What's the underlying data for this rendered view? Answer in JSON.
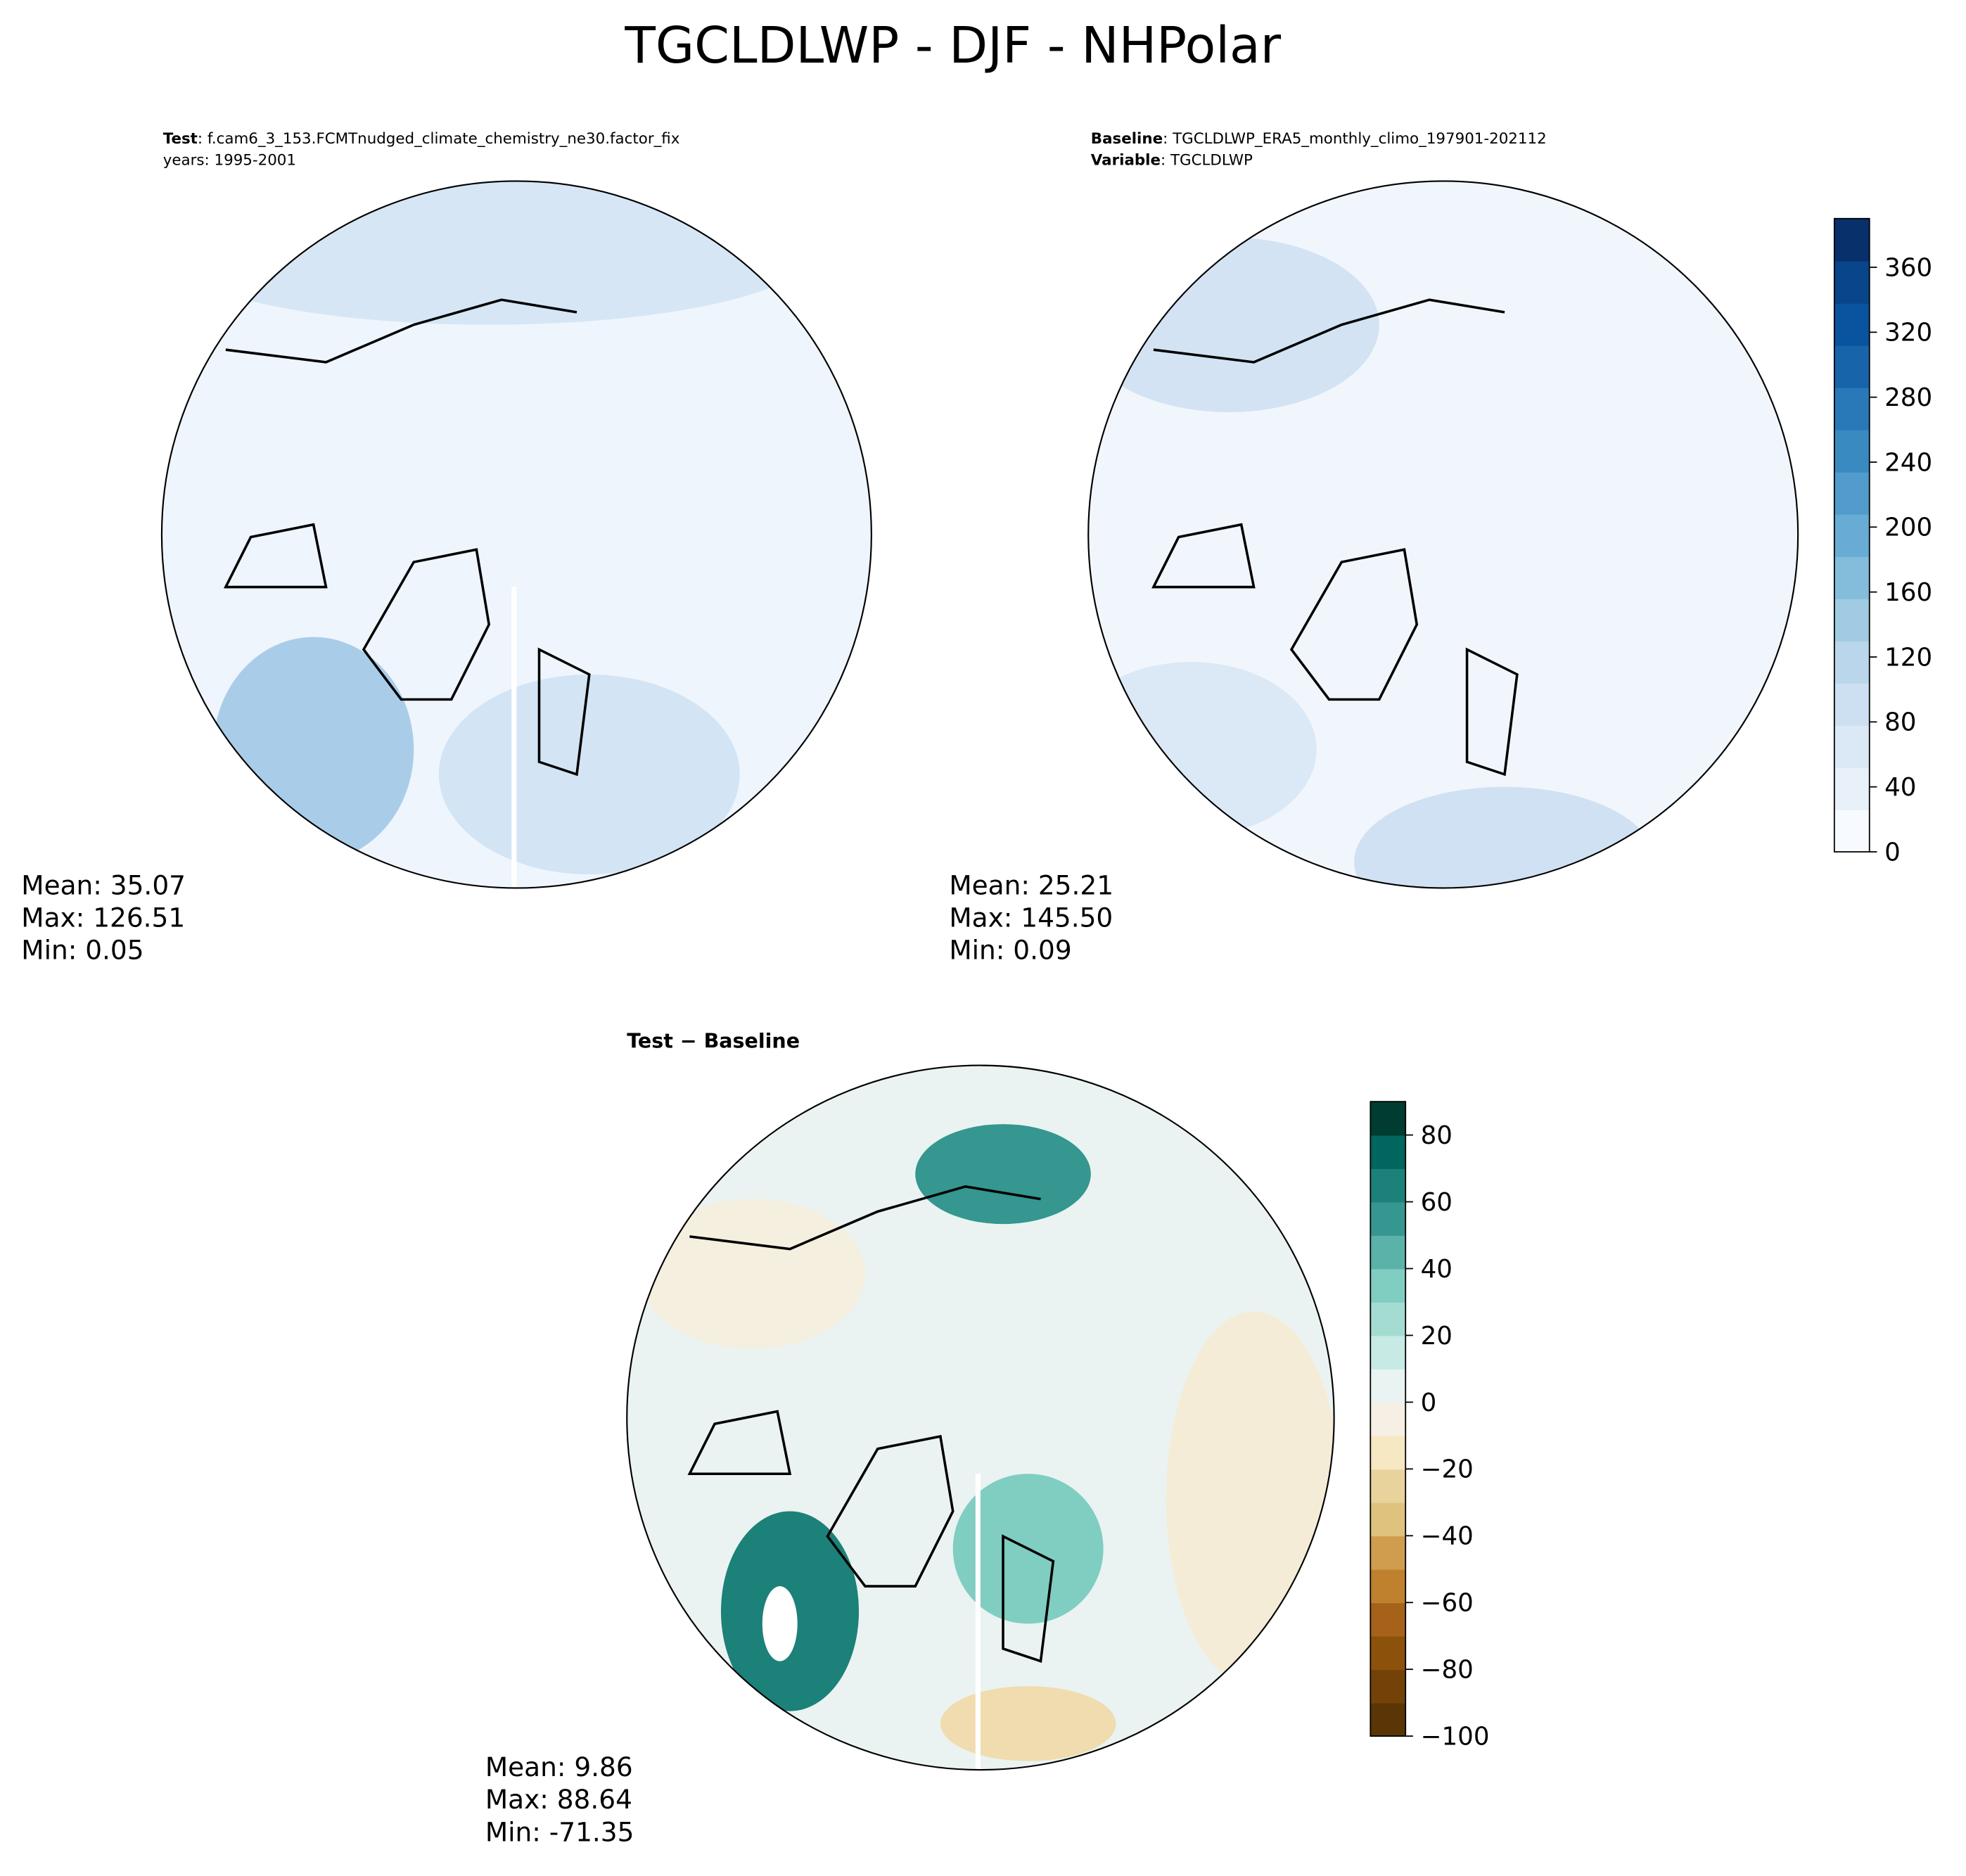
{
  "title": "TGCLDLWP - DJF - NHPolar",
  "panels": [
    {
      "header": [
        {
          "label": "Test",
          "text": ": f.cam6_3_153.FCMTnudged_climate_chemistry_ne30.factor_fix"
        },
        {
          "text": "years: 1995-2001"
        }
      ],
      "stats": [
        "Mean: 35.07",
        "Max: 126.51",
        "Min:  0.05"
      ]
    },
    {
      "header": [
        {
          "label": "Baseline",
          "text": ": TGCLDLWP_ERA5_monthly_climo_197901-202112"
        },
        {
          "label": "Variable",
          "text": ": TGCLDLWP"
        }
      ],
      "stats": [
        "Mean: 25.21",
        "Max: 145.50",
        "Min:  0.09"
      ]
    },
    {
      "header": [
        {
          "label": "Test − Baseline"
        }
      ],
      "stats": [
        "Mean:  9.86",
        "Max: 88.64",
        "Min: -71.35"
      ]
    }
  ],
  "colorbars": [
    {
      "ylim": [
        0,
        390
      ],
      "yticks": [
        0,
        40,
        80,
        120,
        160,
        200,
        240,
        280,
        320,
        360
      ],
      "colors": [
        "#f7fbff",
        "#e8f1fa",
        "#dbe9f6",
        "#cde0f1",
        "#bad6eb",
        "#a0cbe2",
        "#84bcdb",
        "#68acd5",
        "#519ccc",
        "#3a8ac2",
        "#2979b9",
        "#1764ab",
        "#0a539e",
        "#08458a",
        "#08306b"
      ]
    },
    {
      "ylim": [
        -100,
        90
      ],
      "yticks": [
        {
          "value": -100,
          "label": "−100"
        },
        {
          "value": -80,
          "label": "−80"
        },
        {
          "value": -60,
          "label": "−60"
        },
        {
          "value": -40,
          "label": "−40"
        },
        {
          "value": -20,
          "label": "−20"
        },
        0,
        20,
        40,
        60,
        80
      ],
      "colors": [
        "#5a3505",
        "#744208",
        "#8c510a",
        "#a6621a",
        "#bf812d",
        "#d09c4d",
        "#dfc27d",
        "#e9d39c",
        "#f6e8c3",
        "#f5f0e3",
        "#e9f3f1",
        "#c7eae5",
        "#a4dcd2",
        "#80cdc1",
        "#5bb2a8",
        "#35978f",
        "#1c8178",
        "#01665e",
        "#003c30"
      ]
    }
  ]
}
